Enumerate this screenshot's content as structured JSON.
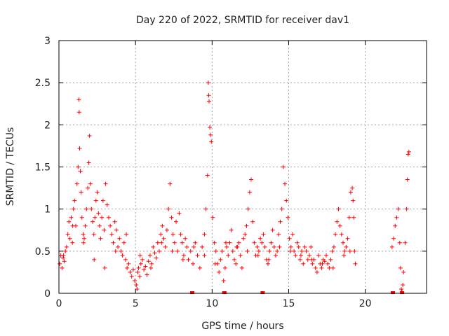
{
  "chart_data": {
    "type": "scatter",
    "title": "Day 220 of 2022, SRMTID for receiver dav1",
    "xlabel": "GPS time / hours",
    "ylabel": "SRMTID / TECUs",
    "xlim": [
      0,
      24
    ],
    "ylim": [
      0,
      3
    ],
    "xticks": [
      0,
      5,
      10,
      15,
      20
    ],
    "yticks": [
      0,
      0.5,
      1,
      1.5,
      2,
      2.5,
      3
    ],
    "xtick_labels": [
      "0",
      "5",
      "10",
      "15",
      "20"
    ],
    "ytick_labels": [
      "0",
      "0.5",
      "1",
      "1.5",
      "2",
      "2.5",
      "3"
    ],
    "grid": true,
    "marker": "plus",
    "marker_color": "#ff0000",
    "series": [
      {
        "name": "SRMTID",
        "x": [
          0.05,
          0.12,
          0.2,
          0.28,
          0.35,
          0.42,
          0.5,
          0.58,
          0.65,
          0.72,
          0.8,
          0.88,
          0.95,
          1.02,
          1.1,
          1.18,
          1.25,
          1.3,
          1.32,
          1.35,
          1.4,
          1.45,
          1.5,
          1.58,
          1.65,
          1.72,
          1.8,
          1.88,
          1.95,
          2.0,
          2.05,
          2.12,
          2.2,
          2.28,
          2.35,
          2.42,
          2.5,
          2.58,
          2.65,
          2.72,
          2.8,
          2.88,
          2.95,
          3.05,
          3.15,
          3.25,
          3.35,
          3.45,
          3.55,
          3.65,
          3.75,
          3.85,
          3.95,
          4.05,
          4.15,
          4.25,
          4.35,
          4.45,
          4.55,
          4.65,
          4.75,
          4.85,
          4.95,
          5.05,
          5.1,
          5.15,
          5.2,
          5.28,
          5.35,
          5.45,
          5.55,
          5.65,
          5.75,
          5.85,
          5.95,
          6.05,
          6.15,
          6.25,
          6.35,
          6.45,
          6.55,
          6.65,
          6.75,
          6.85,
          6.95,
          7.05,
          7.15,
          7.25,
          7.35,
          7.45,
          7.55,
          7.65,
          7.75,
          7.85,
          7.95,
          8.05,
          8.15,
          8.25,
          8.35,
          8.45,
          8.6,
          8.75,
          8.9,
          9.05,
          9.2,
          9.35,
          9.5,
          9.6,
          9.7,
          9.75,
          9.78,
          9.8,
          9.85,
          9.9,
          9.95,
          10.05,
          10.15,
          10.25,
          10.35,
          10.45,
          10.55,
          10.65,
          10.75,
          10.85,
          10.95,
          11.05,
          11.15,
          11.25,
          11.35,
          11.45,
          11.55,
          11.65,
          11.75,
          11.85,
          11.95,
          12.05,
          12.15,
          12.25,
          12.35,
          12.45,
          12.55,
          12.65,
          12.75,
          12.85,
          12.95,
          13.05,
          13.15,
          13.25,
          13.35,
          13.45,
          13.55,
          13.65,
          13.75,
          13.85,
          13.95,
          14.05,
          14.15,
          14.25,
          14.35,
          14.45,
          14.55,
          14.65,
          14.75,
          14.85,
          14.95,
          15.05,
          15.15,
          15.25,
          15.35,
          15.45,
          15.55,
          15.65,
          15.75,
          15.85,
          15.95,
          16.05,
          16.15,
          16.25,
          16.35,
          16.45,
          16.55,
          16.65,
          16.75,
          16.85,
          16.95,
          17.05,
          17.15,
          17.25,
          17.35,
          17.45,
          17.55,
          17.65,
          17.75,
          17.85,
          17.95,
          18.05,
          18.15,
          18.25,
          18.35,
          18.45,
          18.55,
          18.65,
          18.75,
          18.85,
          18.95,
          19.05,
          19.15,
          19.2,
          19.25,
          19.3,
          19.35,
          21.75,
          21.85,
          21.95,
          22.05,
          22.15,
          22.25,
          22.3,
          22.35,
          22.4,
          22.45,
          22.5,
          22.6,
          22.7,
          22.75,
          22.8,
          22.85,
          0.3,
          0.9,
          1.6,
          2.3,
          3.0,
          3.7,
          4.4,
          5.3,
          6.0,
          6.7,
          7.4,
          8.1,
          8.8,
          9.5,
          10.2,
          10.9,
          11.6,
          12.3,
          13.0,
          13.7,
          14.4,
          15.1,
          15.8,
          16.5,
          17.2,
          17.9,
          18.6,
          19.0
        ],
        "y": [
          0.35,
          0.45,
          0.3,
          0.42,
          0.38,
          0.5,
          0.55,
          0.7,
          0.85,
          0.65,
          0.9,
          0.6,
          1.0,
          1.1,
          0.8,
          1.3,
          1.5,
          2.3,
          2.15,
          1.72,
          1.45,
          1.2,
          0.9,
          0.7,
          0.65,
          0.8,
          1.0,
          1.25,
          1.55,
          1.87,
          1.3,
          1.0,
          0.85,
          0.7,
          0.9,
          1.1,
          1.2,
          0.95,
          0.8,
          0.65,
          0.9,
          1.1,
          0.75,
          1.3,
          1.05,
          0.9,
          0.8,
          0.7,
          0.6,
          0.85,
          0.75,
          0.55,
          0.65,
          0.5,
          0.45,
          0.6,
          0.4,
          0.3,
          0.35,
          0.25,
          0.2,
          0.28,
          0.15,
          0.1,
          0.05,
          0.25,
          0.3,
          0.2,
          0.35,
          0.4,
          0.28,
          0.32,
          0.22,
          0.38,
          0.45,
          0.35,
          0.55,
          0.48,
          0.42,
          0.6,
          0.5,
          0.7,
          0.8,
          0.65,
          0.55,
          0.75,
          1.0,
          1.3,
          0.9,
          0.7,
          0.6,
          0.85,
          0.5,
          0.95,
          0.7,
          0.6,
          0.45,
          0.65,
          0.55,
          0.4,
          0.5,
          0.35,
          0.6,
          0.45,
          0.3,
          0.55,
          0.7,
          1.0,
          1.4,
          2.5,
          2.35,
          2.28,
          1.97,
          1.88,
          1.8,
          0.9,
          0.6,
          0.5,
          0.35,
          0.25,
          0.4,
          0.5,
          0.15,
          0.3,
          0.55,
          0.45,
          0.6,
          0.75,
          0.5,
          0.4,
          0.35,
          0.55,
          0.6,
          0.45,
          0.3,
          0.65,
          0.7,
          0.8,
          1.0,
          1.2,
          1.35,
          0.85,
          0.6,
          0.45,
          0.55,
          0.5,
          0.65,
          0.6,
          0.7,
          0.55,
          0.4,
          0.35,
          0.5,
          0.6,
          0.75,
          0.55,
          0.45,
          0.5,
          0.7,
          0.85,
          1.0,
          1.5,
          1.3,
          1.1,
          0.9,
          0.65,
          0.55,
          0.7,
          0.5,
          0.45,
          0.6,
          0.55,
          0.4,
          0.5,
          0.35,
          0.55,
          0.5,
          0.4,
          0.45,
          0.55,
          0.35,
          0.4,
          0.3,
          0.25,
          0.45,
          0.35,
          0.3,
          0.4,
          0.38,
          0.45,
          0.35,
          0.3,
          0.4,
          0.5,
          0.55,
          0.7,
          0.85,
          1.0,
          0.8,
          0.7,
          0.6,
          0.5,
          0.55,
          0.65,
          0.9,
          1.2,
          1.25,
          1.1,
          0.9,
          0.5,
          0.35,
          0.55,
          0.65,
          0.8,
          0.9,
          1.0,
          0.6,
          0.3,
          0.05,
          0.02,
          0.1,
          0.25,
          0.6,
          1.0,
          1.35,
          1.65,
          1.68,
          0.45,
          0.8,
          0.6,
          0.4,
          0.3,
          0.5,
          0.7,
          0.45,
          0.3,
          0.6,
          0.5,
          0.4,
          0.55,
          0.45,
          0.35,
          0.6,
          0.55,
          0.5,
          0.45,
          0.4,
          0.55,
          0.5,
          0.45,
          0.4,
          0.35,
          0.3,
          0.45,
          0.5
        ]
      }
    ],
    "zero_markers_x": [
      8.7,
      10.8,
      13.3,
      21.8,
      22.4
    ]
  }
}
